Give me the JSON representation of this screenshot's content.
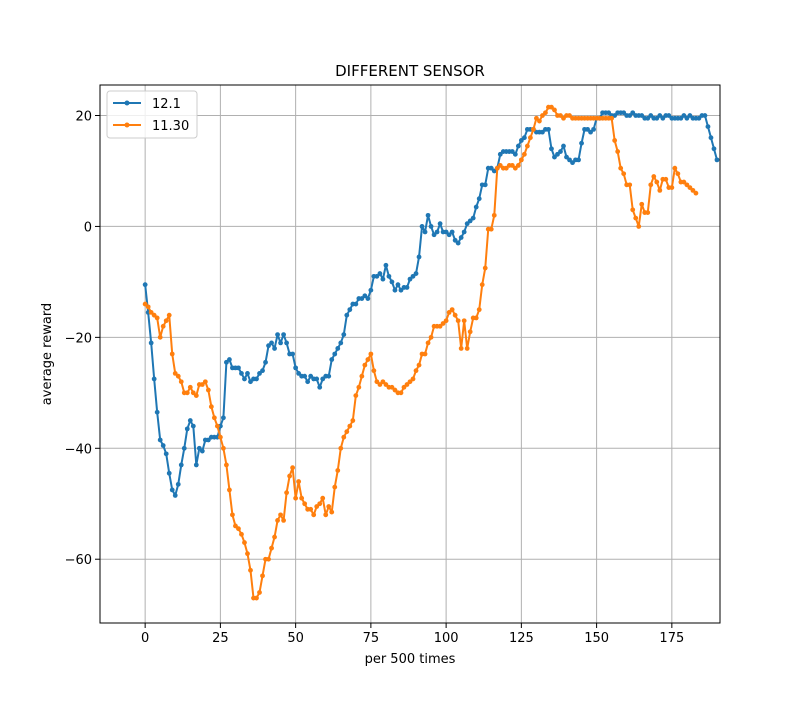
{
  "chart_data": {
    "type": "line",
    "title": "DIFFERENT SENSOR",
    "xlabel": "per 500 times",
    "ylabel": "average reward",
    "xlim": [
      -15,
      191
    ],
    "ylim": [
      -71.5,
      25.5
    ],
    "xticks": [
      0,
      25,
      50,
      75,
      100,
      125,
      150,
      175
    ],
    "yticks": [
      -60,
      -40,
      -20,
      0,
      20
    ],
    "xtick_labels": [
      "0",
      "25",
      "50",
      "75",
      "100",
      "125",
      "150",
      "175"
    ],
    "ytick_labels": [
      "−60",
      "−40",
      "−20",
      "0",
      "20"
    ],
    "grid": true,
    "legend_position": "top-left",
    "series": [
      {
        "name": "12.1",
        "color": "#1f77b4",
        "x_start": 0,
        "values": [
          -10.5,
          -15.5,
          -21,
          -27.5,
          -33.5,
          -38.5,
          -39.5,
          -41,
          -44.5,
          -47.5,
          -48.5,
          -46.5,
          -43,
          -40,
          -36.5,
          -35,
          -36,
          -43,
          -40,
          -40.5,
          -38.5,
          -38.5,
          -38,
          -38,
          -38,
          -36,
          -34.5,
          -24.5,
          -24,
          -25.5,
          -25.5,
          -25.5,
          -26.5,
          -27.5,
          -26.5,
          -28,
          -27.5,
          -27.5,
          -26.5,
          -26,
          -24.5,
          -21.5,
          -21,
          -22,
          -19.5,
          -21,
          -19.5,
          -21,
          -23,
          -23,
          -25.5,
          -26.5,
          -27,
          -27,
          -28,
          -27,
          -27.5,
          -27.5,
          -29,
          -27.5,
          -27,
          -27,
          -24,
          -23,
          -22,
          -21,
          -19.5,
          -16,
          -15,
          -14,
          -14,
          -13,
          -13,
          -12.5,
          -13,
          -11.5,
          -9,
          -9,
          -8.5,
          -9.5,
          -7,
          -9,
          -10,
          -11.5,
          -10.5,
          -11.5,
          -11,
          -11,
          -9.5,
          -9,
          -8.5,
          -5.5,
          0,
          -1,
          2,
          0,
          -1.5,
          -1,
          0.5,
          -1,
          -1,
          -1.5,
          -1,
          -2.5,
          -3,
          -2,
          -1,
          0.5,
          1,
          1.5,
          3.5,
          5,
          7.5,
          7.5,
          10.5,
          10.5,
          10,
          10.5,
          13,
          13.5,
          13.5,
          13.5,
          13.5,
          13,
          14.5,
          15.5,
          16,
          17.5,
          17.5,
          17.5,
          17,
          17,
          17,
          17.5,
          17.5,
          14,
          12.5,
          13,
          13.5,
          14.5,
          12.5,
          12,
          11.5,
          12,
          12,
          15,
          17.5,
          17.5,
          17,
          17.5,
          19.5,
          19.5,
          20.5,
          20.5,
          20.5,
          20,
          20,
          20.5,
          20.5,
          20.5,
          20,
          20,
          20.5,
          20,
          20,
          20,
          19.5,
          19.5,
          20,
          19.5,
          19.5,
          20,
          19.5,
          20,
          20,
          19.5,
          19.5,
          19.5,
          19.5,
          20,
          19.5,
          20,
          19.5,
          19.5,
          19.5,
          20,
          20,
          18,
          16,
          14,
          12
        ]
      },
      {
        "name": "11.30",
        "color": "#ff7f0e",
        "x_start": 0,
        "values": [
          -14,
          -14.5,
          -15.5,
          -16,
          -16.5,
          -20,
          -18,
          -17,
          -16,
          -23,
          -26.5,
          -27,
          -28,
          -30,
          -30,
          -29,
          -30,
          -30.5,
          -28.5,
          -28.5,
          -28,
          -29.5,
          -32.5,
          -34.5,
          -36,
          -38,
          -40,
          -43,
          -47.5,
          -52,
          -54,
          -54.5,
          -55.5,
          -57,
          -59,
          -62,
          -67,
          -67,
          -66,
          -63,
          -60,
          -60,
          -58,
          -56,
          -53,
          -52,
          -53,
          -48,
          -45,
          -43.5,
          -49,
          -46,
          -49,
          -50,
          -51,
          -51,
          -52,
          -50.5,
          -50,
          -49,
          -52,
          -50.5,
          -51.5,
          -47,
          -44,
          -40,
          -38,
          -37,
          -36,
          -35,
          -30.5,
          -29,
          -27,
          -25,
          -24,
          -23,
          -26,
          -28,
          -28.5,
          -28,
          -28.5,
          -29,
          -29,
          -29.5,
          -30,
          -30,
          -29,
          -28.5,
          -28,
          -27.5,
          -26,
          -25,
          -23,
          -23,
          -21,
          -20,
          -18,
          -18,
          -18,
          -17.5,
          -17,
          -15.5,
          -15,
          -16,
          -17,
          -22,
          -17,
          -22,
          -19,
          -16.5,
          -16.5,
          -15,
          -10.5,
          -7.5,
          -0.5,
          -0.5,
          2,
          10.5,
          11,
          10.5,
          10.5,
          11,
          11,
          10.5,
          11,
          12,
          13,
          14.5,
          16,
          17.5,
          19.5,
          19,
          20,
          20.5,
          21.5,
          21.5,
          21,
          20,
          20,
          19.5,
          20,
          20,
          19.5,
          19.5,
          19.5,
          19.5,
          19.5,
          19.5,
          19.5,
          19.5,
          19.5,
          19.5,
          19.5,
          19.5,
          19.5,
          19.5,
          15.5,
          13.5,
          10.5,
          9.5,
          7.5,
          7.5,
          3,
          1.5,
          0,
          4,
          2.5,
          2.5,
          7.5,
          9,
          8,
          6.5,
          8.5,
          8.5,
          7,
          7,
          10.5,
          9.5,
          8,
          8,
          7.5,
          7,
          6.5,
          6
        ]
      }
    ]
  }
}
